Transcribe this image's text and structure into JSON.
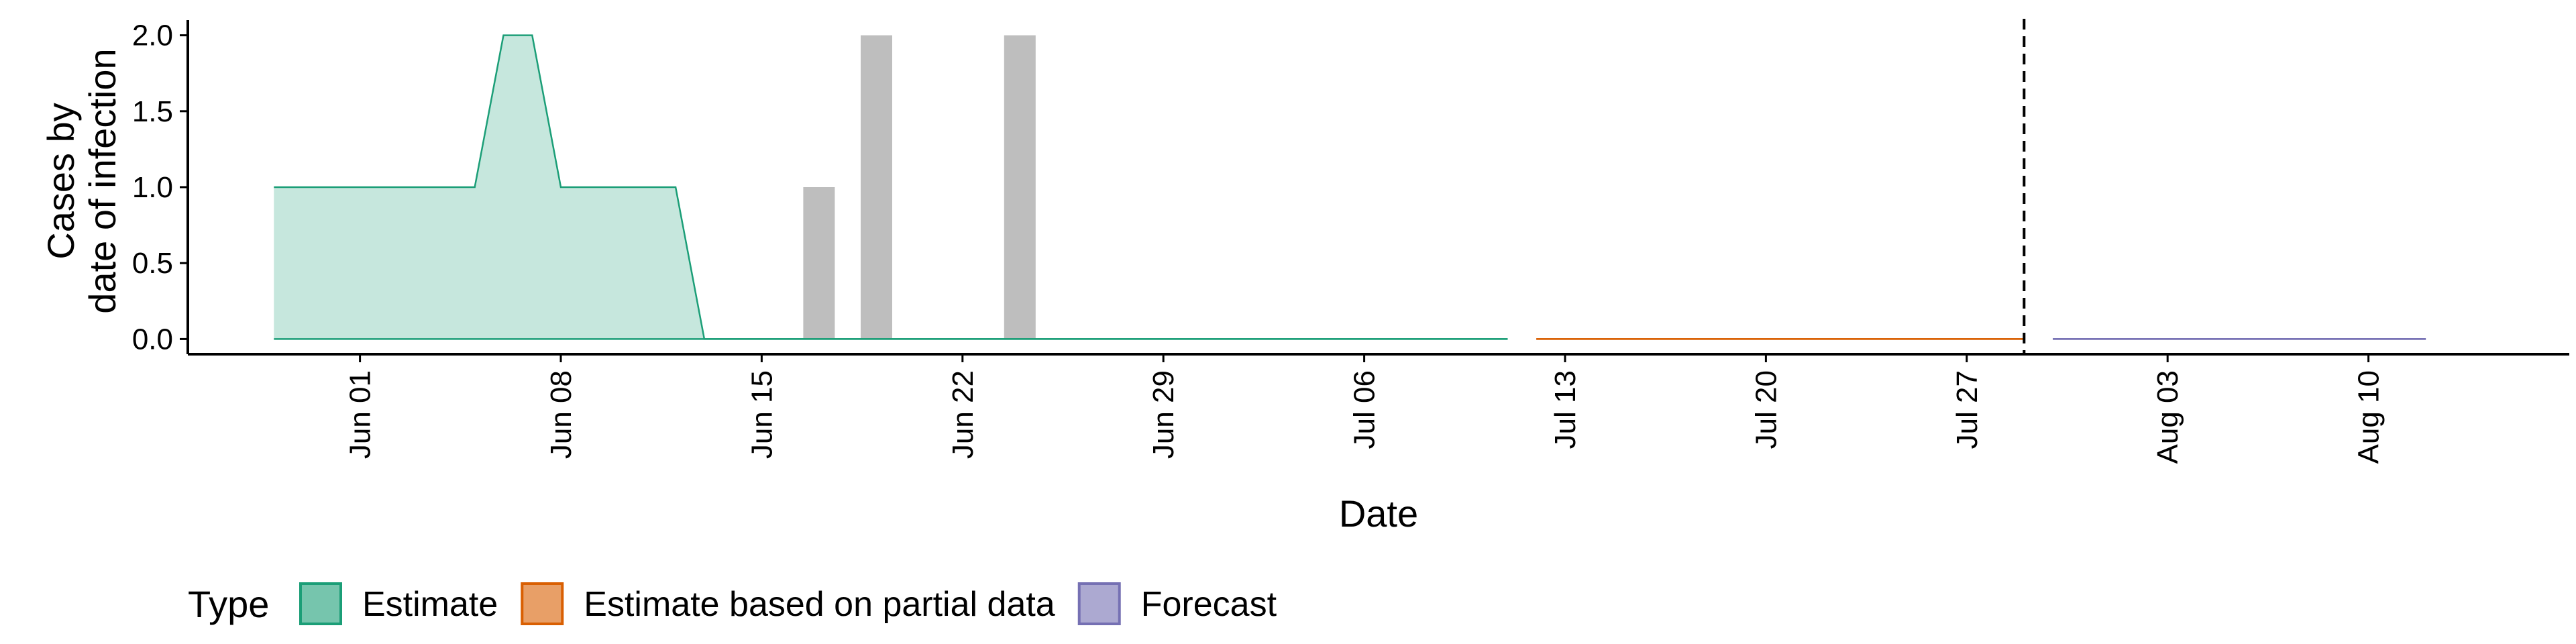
{
  "chart_data": {
    "type": "area",
    "title": "",
    "xlabel": "Date",
    "ylabel": [
      "Cases by",
      "date of infection"
    ],
    "x_range": [
      "2020-05-26",
      "2020-08-17"
    ],
    "ylim": [
      -0.1,
      2.1
    ],
    "y_ticks": [
      0.0,
      0.5,
      1.0,
      1.5,
      2.0
    ],
    "y_tick_labels": [
      "0.0",
      "0.5",
      "1.0",
      "1.5",
      "2.0"
    ],
    "x_ticks": [
      "2020-06-01",
      "2020-06-08",
      "2020-06-15",
      "2020-06-22",
      "2020-06-29",
      "2020-07-06",
      "2020-07-13",
      "2020-07-20",
      "2020-07-27",
      "2020-08-03",
      "2020-08-10"
    ],
    "x_tick_labels": [
      "Jun 01",
      "Jun 08",
      "Jun 15",
      "Jun 22",
      "Jun 29",
      "Jul 06",
      "Jul 13",
      "Jul 20",
      "Jul 27",
      "Aug 03",
      "Aug 10"
    ],
    "grid": false,
    "legend_position": "bottom",
    "reported_cases": {
      "color": "#bebebe",
      "dates": [
        "2020-06-17",
        "2020-06-19",
        "2020-06-24"
      ],
      "values": [
        1,
        2,
        2
      ]
    },
    "series": [
      {
        "name": "Estimate",
        "color": "#1b9e77",
        "fill": "#1b9e77",
        "dates": [
          "2020-05-29",
          "2020-06-05",
          "2020-06-06",
          "2020-06-07",
          "2020-06-08",
          "2020-06-12",
          "2020-06-13",
          "2020-07-11"
        ],
        "upper": [
          1,
          1,
          2,
          2,
          1,
          1,
          0,
          0
        ],
        "lower": [
          0,
          0,
          0,
          0,
          0,
          0,
          0,
          0
        ]
      },
      {
        "name": "Estimate based on partial data",
        "color": "#d95f02",
        "fill": "#d95f02",
        "dates": [
          "2020-07-12",
          "2020-07-29"
        ],
        "upper": [
          0,
          0
        ],
        "lower": [
          0,
          0
        ]
      },
      {
        "name": "Forecast",
        "color": "#7570b3",
        "fill": "#7570b3",
        "dates": [
          "2020-07-30",
          "2020-08-12"
        ],
        "upper": [
          0,
          0
        ],
        "lower": [
          0,
          0
        ]
      }
    ],
    "vline_date": "2020-07-29",
    "legend_title": "Type",
    "legend_items": [
      {
        "label": "Estimate",
        "color": "#1b9e77"
      },
      {
        "label": "Estimate based on partial data",
        "color": "#d95f02"
      },
      {
        "label": "Forecast",
        "color": "#7570b3"
      }
    ]
  }
}
